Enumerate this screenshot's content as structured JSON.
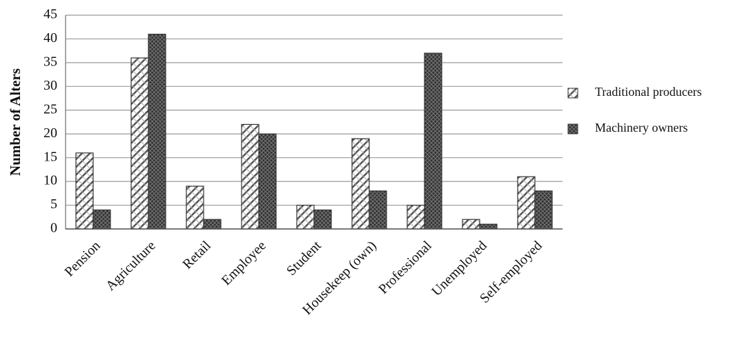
{
  "chart_data": {
    "type": "bar",
    "y_label": "Number of Alters",
    "categories": [
      "Pension",
      "Agriculture",
      "Retail",
      "Employee",
      "Student",
      "Housekeep (own)",
      "Professional",
      "Unemployed",
      "Self-employed"
    ],
    "series": [
      {
        "name": "Traditional producers",
        "color": "#555555",
        "values": [
          16,
          36,
          9,
          22,
          5,
          19,
          5,
          2,
          11
        ]
      },
      {
        "name": "Machinery owners",
        "color": "#333333",
        "values": [
          4,
          41,
          2,
          20,
          4,
          8,
          37,
          1,
          8
        ]
      }
    ],
    "ylim": [
      0,
      45
    ],
    "yticks": [
      0,
      5,
      10,
      15,
      20,
      25,
      30,
      35,
      40,
      45
    ],
    "grid": true
  }
}
